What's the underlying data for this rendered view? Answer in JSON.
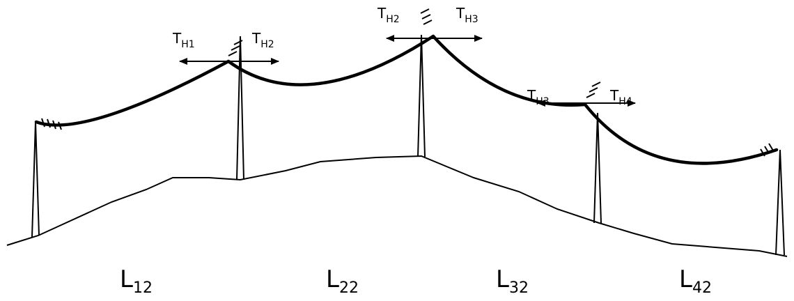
{
  "tension_labels": [
    {
      "left": {
        "main": "T",
        "sub": "H1"
      },
      "right": {
        "main": "T",
        "sub": "H2"
      }
    },
    {
      "left": {
        "main": "T",
        "sub": "H2"
      },
      "right": {
        "main": "T",
        "sub": "H3"
      }
    },
    {
      "left": {
        "main": "T",
        "sub": "H3"
      },
      "right": {
        "main": "T",
        "sub": "H4"
      }
    }
  ],
  "spans": [
    {
      "main": "L",
      "sub": "12"
    },
    {
      "main": "L",
      "sub": "22"
    },
    {
      "main": "L",
      "sub": "32"
    },
    {
      "main": "L",
      "sub": "42"
    }
  ]
}
